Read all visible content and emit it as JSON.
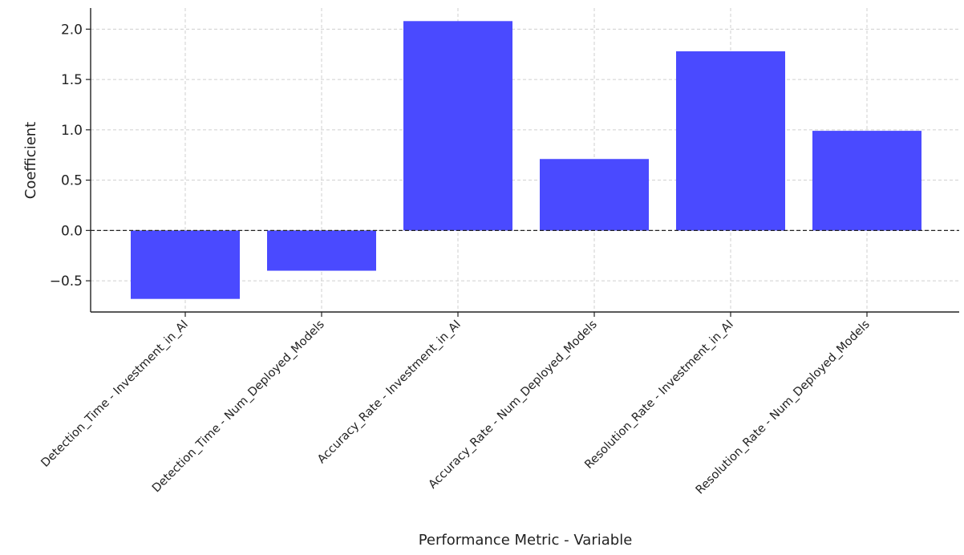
{
  "chart_data": {
    "type": "bar",
    "title": "",
    "xlabel": "Performance Metric - Variable",
    "ylabel": "Coefficient",
    "categories": [
      "Detection_Time - Investment_in_AI",
      "Detection_Time - Num_Deployed_Models",
      "Accuracy_Rate - Investment_in_AI",
      "Accuracy_Rate - Num_Deployed_Models",
      "Resolution_Rate - Investment_in_AI",
      "Resolution_Rate - Num_Deployed_Models"
    ],
    "values": [
      -0.68,
      -0.4,
      2.08,
      0.71,
      1.78,
      0.99
    ],
    "yticks": [
      -0.5,
      0.0,
      0.5,
      1.0,
      1.5,
      2.0
    ],
    "ytick_labels": [
      "−0.5",
      "0.0",
      "0.5",
      "1.0",
      "1.5",
      "2.0"
    ],
    "ylim": [
      -0.81,
      2.21
    ],
    "grid": true,
    "zero_line": "dashed",
    "legend": "none",
    "bar_color": "#4a4aff"
  }
}
